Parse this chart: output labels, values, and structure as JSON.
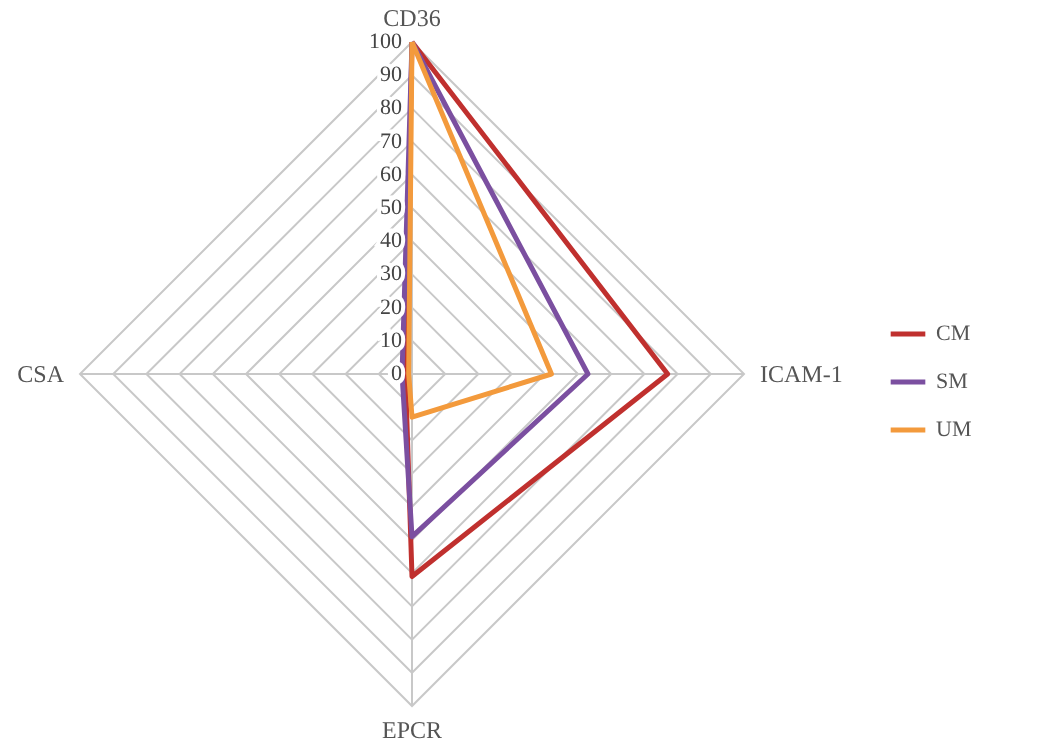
{
  "chart_data": {
    "type": "radar",
    "categories": [
      "CD36",
      "ICAM-1",
      "EPCR",
      "CSA"
    ],
    "series": [
      {
        "name": "CM",
        "color": "#c0302e",
        "values": [
          100,
          77,
          61,
          2
        ]
      },
      {
        "name": "SM",
        "color": "#7b4fa0",
        "values": [
          100,
          53,
          49,
          3
        ]
      },
      {
        "name": "UM",
        "color": "#f39a3c",
        "values": [
          100,
          42,
          13,
          1
        ]
      }
    ],
    "ylim": [
      0,
      100
    ],
    "yticks": [
      0,
      10,
      20,
      30,
      40,
      50,
      60,
      70,
      80,
      90,
      100
    ],
    "grid": true,
    "legend": "right",
    "line_style": "solid"
  }
}
